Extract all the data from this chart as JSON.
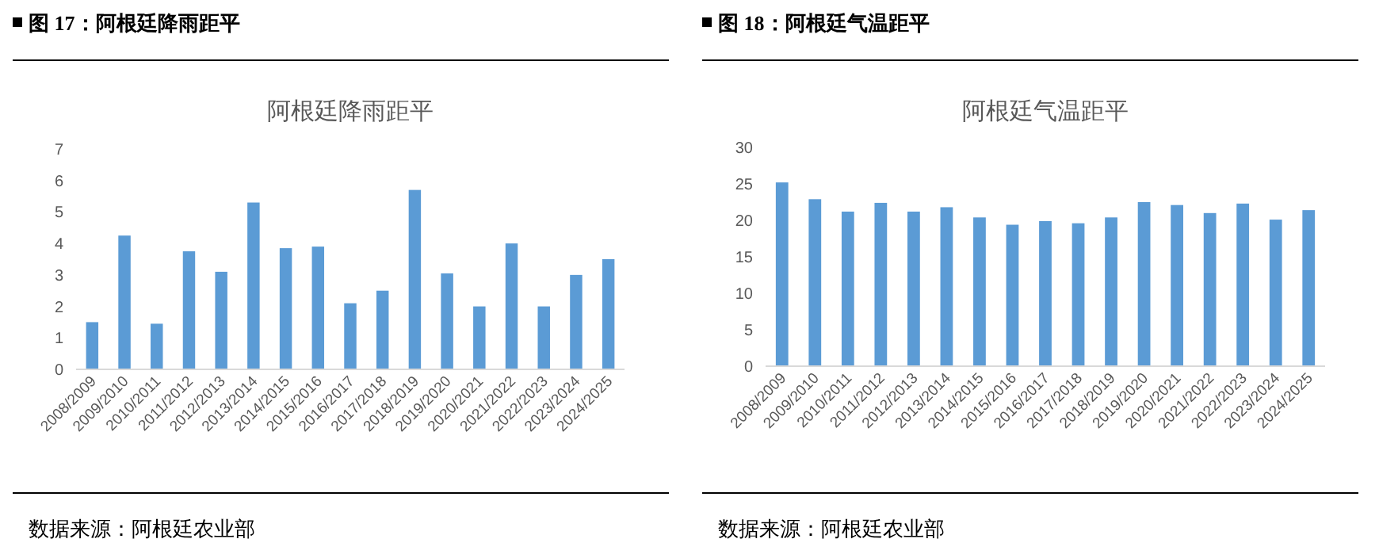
{
  "chart_data": [
    {
      "type": "bar",
      "title": "阿根廷降雨距平",
      "categories": [
        "2008/2009",
        "2009/2010",
        "2010/2011",
        "2011/2012",
        "2012/2013",
        "2013/2014",
        "2014/2015",
        "2015/2016",
        "2016/2017",
        "2017/2018",
        "2018/2019",
        "2019/2020",
        "2020/2021",
        "2021/2022",
        "2022/2023",
        "2023/2024",
        "2024/2025"
      ],
      "values": [
        1.5,
        4.25,
        1.45,
        3.75,
        3.1,
        5.3,
        3.85,
        3.9,
        2.1,
        2.5,
        5.7,
        3.05,
        2.0,
        4.0,
        2.0,
        3.0,
        3.5
      ],
      "color": "#5b9bd5",
      "ylim": [
        0,
        7
      ],
      "yticks": [
        0,
        1,
        2,
        3,
        4,
        5,
        6,
        7
      ],
      "annotations": [
        "图 17：阿根廷降雨距平",
        "数据来源：阿根廷农业部"
      ]
    },
    {
      "type": "bar",
      "title": "阿根廷气温距平",
      "categories": [
        "2008/2009",
        "2009/2010",
        "2010/2011",
        "2011/2012",
        "2012/2013",
        "2013/2014",
        "2014/2015",
        "2015/2016",
        "2016/2017",
        "2017/2018",
        "2018/2019",
        "2019/2020",
        "2020/2021",
        "2021/2022",
        "2022/2023",
        "2023/2024",
        "2024/2025"
      ],
      "values": [
        25.2,
        22.9,
        21.2,
        22.4,
        21.2,
        21.8,
        20.4,
        19.4,
        19.9,
        19.6,
        20.4,
        22.5,
        22.1,
        21.0,
        22.3,
        20.1,
        21.4
      ],
      "color": "#5b9bd5",
      "ylim": [
        0,
        30
      ],
      "yticks": [
        0,
        5,
        10,
        15,
        20,
        25,
        30
      ],
      "annotations": [
        "图 18：阿根廷气温距平",
        "数据来源：阿根廷农业部"
      ]
    }
  ]
}
